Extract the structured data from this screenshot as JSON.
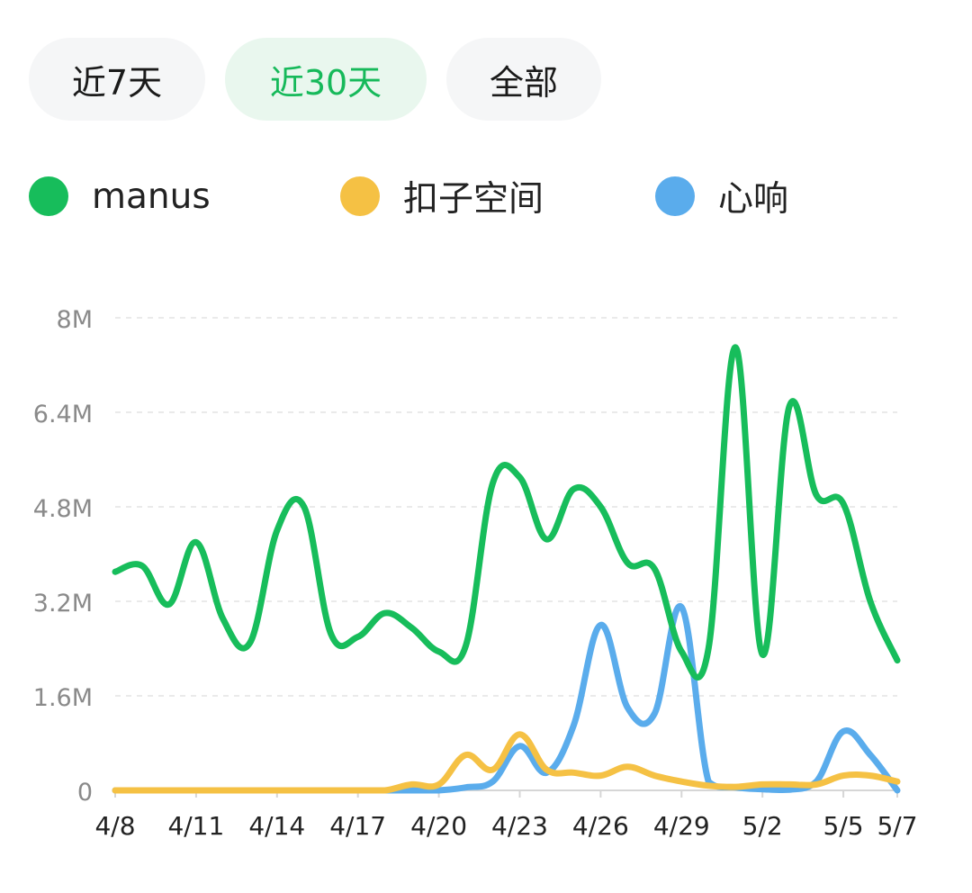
{
  "tabs": [
    {
      "label": "近7天",
      "active": false
    },
    {
      "label": "近30天",
      "active": true
    },
    {
      "label": "全部",
      "active": false
    }
  ],
  "colors": {
    "manus": "#17bd5b",
    "kouzi": "#f5c144",
    "xinxiang": "#5aacec",
    "tab_active_text": "#16b95a",
    "tab_active_bg": "#e9f7ee",
    "tab_bg": "#f5f6f7",
    "axis_label": "#8a8a8a",
    "grid": "#e3e3e3"
  },
  "chart_data": {
    "type": "line",
    "x": [
      "4/8",
      "4/9",
      "4/10",
      "4/11",
      "4/12",
      "4/13",
      "4/14",
      "4/15",
      "4/16",
      "4/17",
      "4/18",
      "4/19",
      "4/20",
      "4/21",
      "4/22",
      "4/23",
      "4/24",
      "4/25",
      "4/26",
      "4/27",
      "4/28",
      "4/29",
      "4/30",
      "5/1",
      "5/2",
      "5/3",
      "5/4",
      "5/5",
      "5/6",
      "5/7"
    ],
    "x_tick_labels": [
      "4/8",
      "4/11",
      "4/14",
      "4/17",
      "4/20",
      "4/23",
      "4/26",
      "4/29",
      "5/2",
      "5/5",
      "5/7"
    ],
    "y_tick_labels": [
      "0",
      "1.6M",
      "3.2M",
      "4.8M",
      "6.4M",
      "8M"
    ],
    "ylim": [
      0,
      8000000
    ],
    "grid": true,
    "legend_position": "top",
    "series": [
      {
        "name": "manus",
        "color_key": "manus",
        "values": [
          3700000,
          3800000,
          3150000,
          4200000,
          2900000,
          2500000,
          4400000,
          4800000,
          2650000,
          2600000,
          3000000,
          2750000,
          2350000,
          2450000,
          5200000,
          5300000,
          4250000,
          5100000,
          4800000,
          3850000,
          3750000,
          2350000,
          2400000,
          7500000,
          2300000,
          6500000,
          5000000,
          4850000,
          3200000,
          2200000
        ]
      },
      {
        "name": "扣子空间",
        "color_key": "kouzi",
        "values": [
          0,
          0,
          0,
          0,
          0,
          0,
          0,
          0,
          0,
          0,
          0,
          100000,
          100000,
          600000,
          350000,
          950000,
          350000,
          300000,
          250000,
          400000,
          250000,
          150000,
          80000,
          60000,
          100000,
          100000,
          100000,
          250000,
          250000,
          150000
        ]
      },
      {
        "name": "心响",
        "color_key": "xinxiang",
        "values": [
          0,
          0,
          0,
          0,
          0,
          0,
          0,
          0,
          0,
          0,
          0,
          0,
          0,
          50000,
          150000,
          750000,
          300000,
          1100000,
          2800000,
          1400000,
          1300000,
          3100000,
          150000,
          50000,
          20000,
          10000,
          150000,
          1000000,
          600000,
          0
        ]
      }
    ]
  }
}
